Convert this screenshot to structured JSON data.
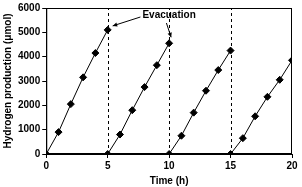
{
  "chart_data": {
    "type": "line",
    "x_label": "Time (h)",
    "y_label": "Hydrogen production (μmol)",
    "series": [
      {
        "color": "#000000",
        "marker": "diamond",
        "x": [
          0,
          1,
          2,
          3,
          4,
          5
        ],
        "values": [
          0,
          900,
          2050,
          3150,
          4150,
          5100
        ]
      },
      {
        "color": "#000000",
        "marker": "diamond",
        "x": [
          5,
          6,
          7,
          8,
          9,
          10
        ],
        "values": [
          0,
          800,
          1800,
          2750,
          3650,
          4550
        ]
      },
      {
        "color": "#000000",
        "marker": "diamond",
        "x": [
          10,
          11,
          12,
          13,
          14,
          15
        ],
        "values": [
          0,
          750,
          1700,
          2600,
          3450,
          4250
        ]
      },
      {
        "color": "#000000",
        "marker": "diamond",
        "x": [
          15,
          16,
          17,
          18,
          19,
          20
        ],
        "values": [
          0,
          650,
          1550,
          2350,
          3050,
          3850
        ]
      }
    ],
    "vlines": [
      5,
      10,
      15
    ],
    "annotation": "Evacuation",
    "xlim": [
      0,
      20
    ],
    "xticks": [
      0,
      5,
      10,
      15,
      20
    ],
    "ylim": [
      0,
      6000
    ],
    "yticks": [
      0,
      1000,
      2000,
      3000,
      4000,
      5000,
      6000
    ],
    "grid": false
  }
}
